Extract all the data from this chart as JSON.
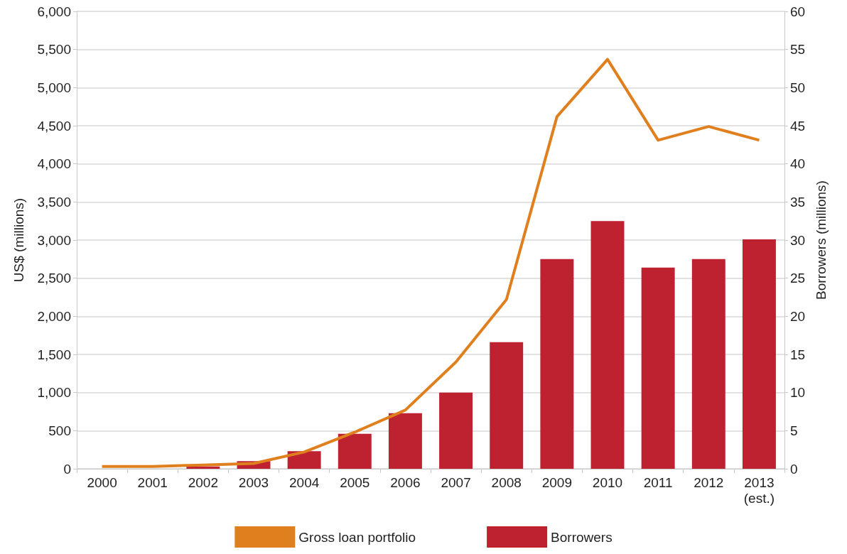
{
  "chart_data": {
    "type": "bar",
    "categories": [
      "2000",
      "2001",
      "2002",
      "2003",
      "2004",
      "2005",
      "2006",
      "2007",
      "2008",
      "2009",
      "2010",
      "2011",
      "2012",
      "2013\n(est.)"
    ],
    "series": [
      {
        "name": "Gross loan portfolio",
        "type": "line",
        "color": "#e07f1e",
        "values": [
          30,
          30,
          50,
          70,
          220,
          480,
          770,
          1400,
          2220,
          4620,
          5370,
          4310,
          4490,
          4310
        ]
      },
      {
        "name": "Borrowers",
        "axis": "y2",
        "color": "#be2231",
        "values": [
          0,
          0,
          0.3,
          1.0,
          2.3,
          4.6,
          7.3,
          10,
          16.6,
          27.5,
          32.5,
          26.4,
          27.5,
          30.1
        ]
      }
    ],
    "ylabel": "US$ (millions)",
    "y2label": "Borrowers (millions)",
    "ylim": [
      0,
      6000
    ],
    "yticks": [
      0,
      500,
      {
        "value": 1000,
        "label": "1,000"
      },
      {
        "value": 1500,
        "label": "1,500"
      },
      {
        "value": 2000,
        "label": "2,000"
      },
      {
        "value": 2500,
        "label": "2,500"
      },
      {
        "value": 3000,
        "label": "3,000"
      },
      {
        "value": 3500,
        "label": "3,500"
      },
      {
        "value": 4000,
        "label": "4,000"
      },
      {
        "value": 4500,
        "label": "4,500"
      },
      {
        "value": 5000,
        "label": "5,000"
      },
      {
        "value": 5500,
        "label": "5,500"
      },
      {
        "value": 6000,
        "label": "6,000"
      }
    ],
    "y2lim": [
      0,
      60
    ],
    "y2ticks": [
      0,
      5,
      10,
      15,
      20,
      25,
      30,
      35,
      40,
      45,
      50,
      55,
      60
    ],
    "grid": "y",
    "legend": "bottom",
    "marker": "none",
    "line_style": "solid"
  }
}
